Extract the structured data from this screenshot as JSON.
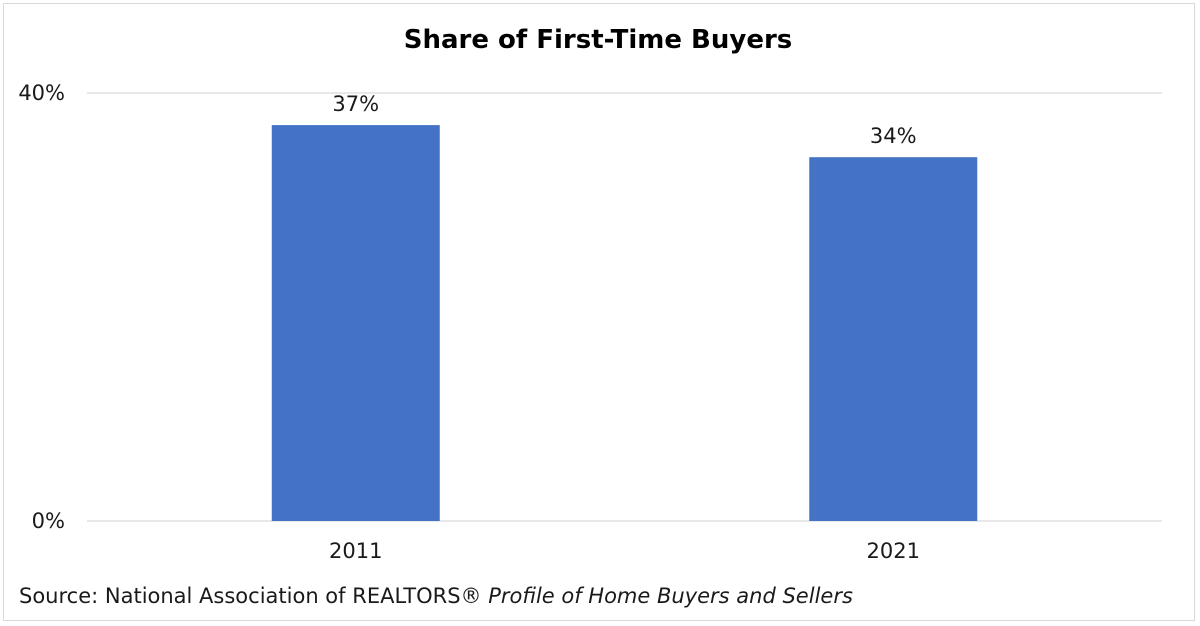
{
  "chart_data": {
    "type": "bar",
    "title": "Share of First-Time Buyers",
    "categories": [
      "2011",
      "2021"
    ],
    "values": [
      37,
      34
    ],
    "data_labels": [
      "37%",
      "34%"
    ],
    "ylim": [
      0,
      40
    ],
    "y_ticks": [
      {
        "value": 0,
        "label": "0%"
      },
      {
        "value": 40,
        "label": "40%"
      }
    ],
    "grid": true,
    "legend": "none",
    "bar_color": "#4472C4",
    "grid_color": "#d9d9d9"
  },
  "source": {
    "prefix": "Source: National Association of REALTORS®",
    "publication": "Profile of Home Buyers and Sellers"
  }
}
